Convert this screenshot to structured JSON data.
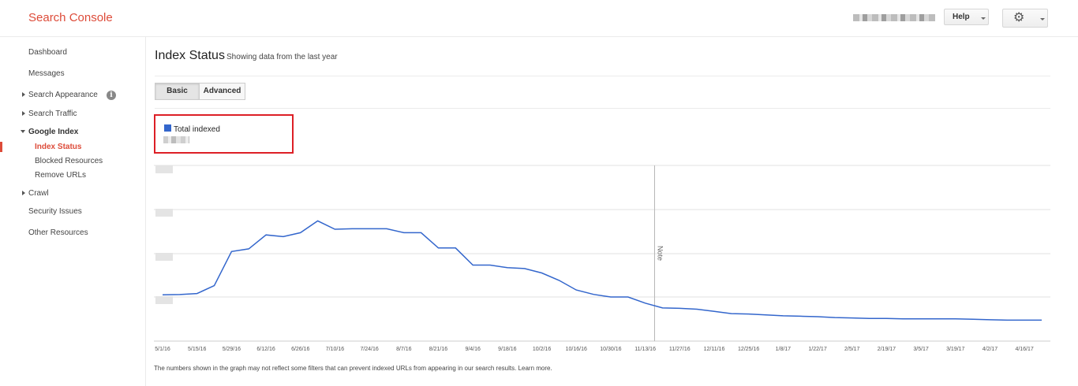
{
  "app": {
    "title": "Search Console"
  },
  "header": {
    "user_redacted": "",
    "help_label": "Help",
    "settings_icon": "gear-icon"
  },
  "sidebar": {
    "items": [
      {
        "label": "Dashboard"
      },
      {
        "label": "Messages"
      },
      {
        "label": "Search Appearance",
        "expandable": true,
        "info_icon": "info-icon"
      },
      {
        "label": "Search Traffic",
        "expandable": true
      },
      {
        "label": "Google Index",
        "expanded": true,
        "children": [
          {
            "label": "Index Status",
            "active": true
          },
          {
            "label": "Blocked Resources"
          },
          {
            "label": "Remove URLs"
          }
        ]
      },
      {
        "label": "Crawl",
        "expandable": true
      },
      {
        "label": "Security Issues"
      },
      {
        "label": "Other Resources"
      }
    ]
  },
  "main": {
    "title": "Index Status",
    "subtitle": "Showing data from the last year",
    "tabs": [
      {
        "label": "Basic",
        "selected": true
      },
      {
        "label": "Advanced",
        "selected": false
      }
    ],
    "legend": {
      "label": "Total indexed",
      "value_redacted": "",
      "color": "#3366cc",
      "highlight_color": "#dd1f26"
    },
    "footer_note": "The numbers shown in the graph may not reflect some filters that can prevent indexed URLs from appearing in our search results. Learn more."
  },
  "chart_data": {
    "type": "line",
    "x": [
      "5/1/16",
      "5/8/16",
      "5/15/16",
      "5/22/16",
      "5/29/16",
      "6/5/16",
      "6/12/16",
      "6/19/16",
      "6/26/16",
      "7/3/16",
      "7/10/16",
      "7/17/16",
      "7/24/16",
      "7/31/16",
      "8/7/16",
      "8/14/16",
      "8/21/16",
      "8/28/16",
      "9/4/16",
      "9/11/16",
      "9/18/16",
      "9/25/16",
      "10/2/16",
      "10/9/16",
      "10/16/16",
      "10/23/16",
      "10/30/16",
      "11/6/16",
      "11/13/16",
      "11/20/16",
      "11/27/16",
      "12/4/16",
      "12/11/16",
      "12/18/16",
      "12/25/16",
      "1/1/17",
      "1/8/17",
      "1/15/17",
      "1/22/17",
      "1/29/17",
      "2/5/17",
      "2/12/17",
      "2/19/17",
      "2/26/17",
      "3/5/17",
      "3/12/17",
      "3/19/17",
      "3/26/17",
      "4/2/17",
      "4/9/17",
      "4/16/17",
      "4/23/17"
    ],
    "series": [
      {
        "name": "Total indexed",
        "color": "#3366cc",
        "values": [
          0.05,
          0.055,
          0.08,
          0.26,
          1.04,
          1.1,
          1.42,
          1.38,
          1.47,
          1.74,
          1.55,
          1.56,
          1.56,
          1.56,
          1.47,
          1.47,
          1.12,
          1.12,
          0.73,
          0.73,
          0.67,
          0.65,
          0.55,
          0.38,
          0.16,
          0.06,
          0.0,
          0.0,
          -0.14,
          -0.25,
          -0.26,
          -0.28,
          -0.33,
          -0.38,
          -0.39,
          -0.41,
          -0.43,
          -0.44,
          -0.45,
          -0.47,
          -0.48,
          -0.49,
          -0.49,
          -0.5,
          -0.5,
          -0.5,
          -0.5,
          -0.51,
          -0.52,
          -0.53,
          -0.53,
          -0.53
        ]
      }
    ],
    "x_tick_labels": [
      "5/1/16",
      "5/15/16",
      "5/29/16",
      "6/12/16",
      "6/26/16",
      "7/10/16",
      "7/24/16",
      "8/7/16",
      "8/21/16",
      "9/4/16",
      "9/18/16",
      "10/2/16",
      "10/16/16",
      "10/30/16",
      "11/13/16",
      "11/27/16",
      "12/11/16",
      "12/25/16",
      "1/8/17",
      "1/22/17",
      "2/5/17",
      "2/19/17",
      "3/5/17",
      "3/19/17",
      "4/2/17",
      "4/16/17"
    ],
    "y_tick_labels_redacted": true,
    "annotations": [
      {
        "x": "11/20/16",
        "label": "Note"
      }
    ],
    "grid": true,
    "legend": "top-left"
  }
}
